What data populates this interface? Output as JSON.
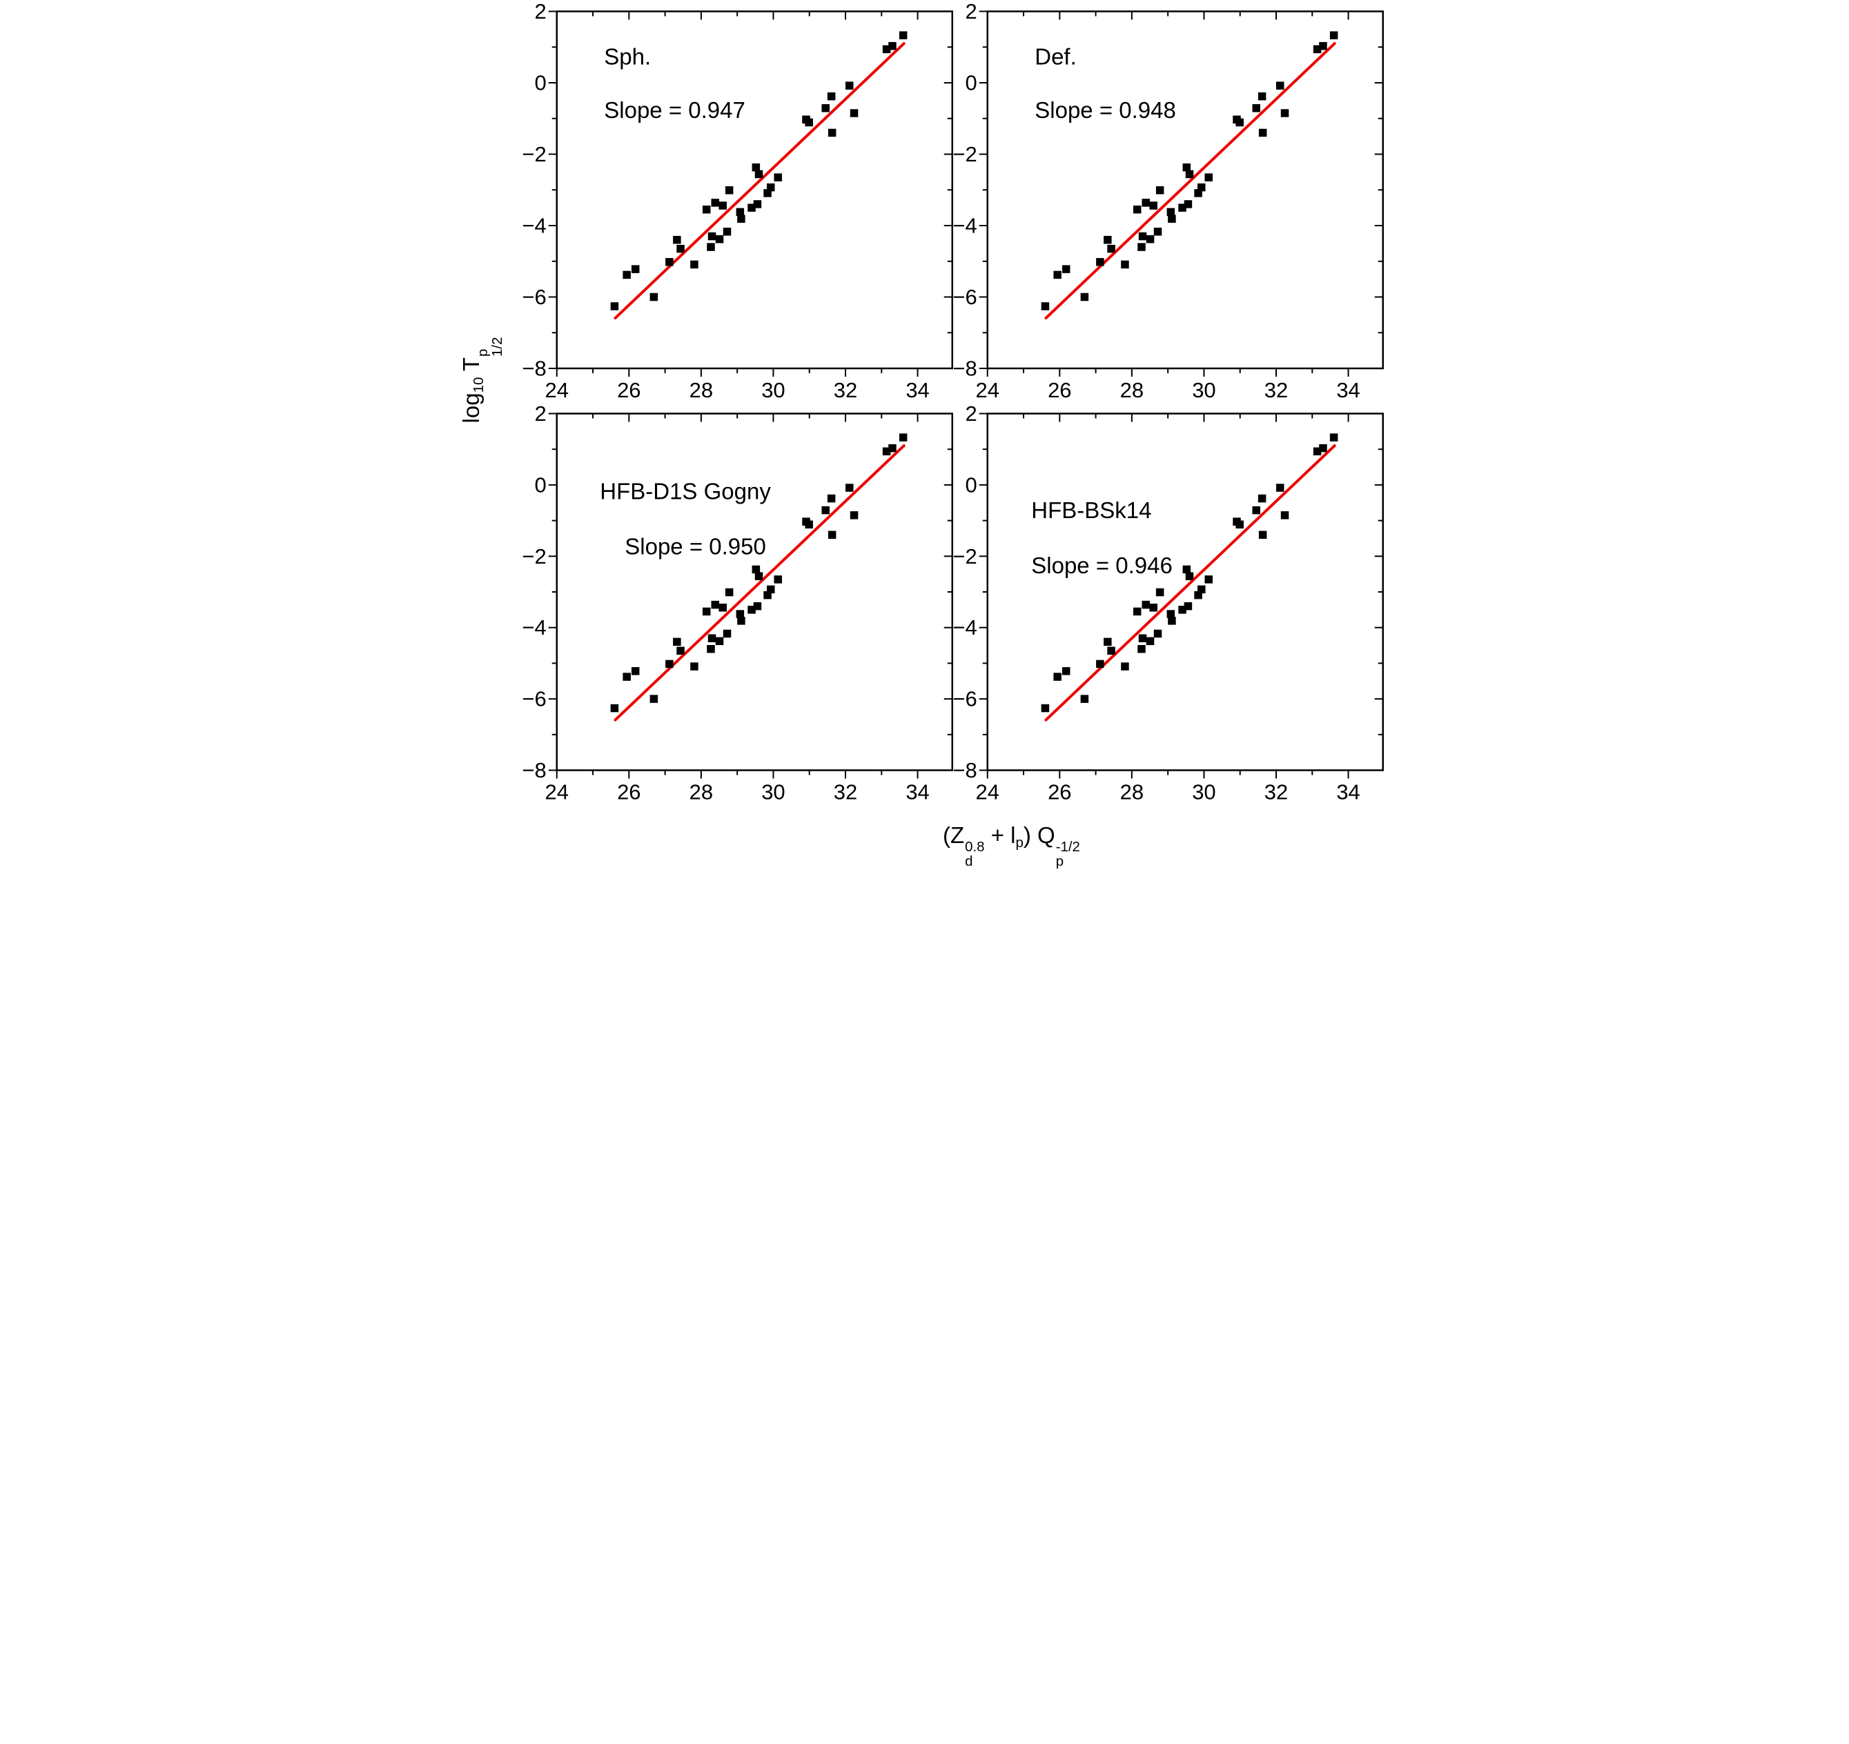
{
  "figure": {
    "background_color": "#ffffff",
    "marker_color": "#000000",
    "line_color": "#ee0000",
    "axis_color": "#000000"
  },
  "axes": {
    "x": {
      "min": 24,
      "max": 34.96,
      "major_ticks": [
        24,
        26,
        28,
        30,
        32,
        34
      ],
      "minor_ticks": [
        25,
        27,
        29,
        31,
        33
      ],
      "tick_labels": [
        "24",
        "26",
        "28",
        "30",
        "32",
        "34"
      ]
    },
    "y": {
      "min": -8,
      "max": 2,
      "major_ticks": [
        2,
        0,
        -2,
        -4,
        -6,
        -8
      ],
      "minor_ticks": [
        1,
        -1,
        -3,
        -5,
        -7
      ],
      "tick_labels": [
        "2",
        "0",
        "−2",
        "−4",
        "−6",
        "−8"
      ]
    }
  },
  "axis_titles": {
    "y": {
      "prefix": "log",
      "prefix_sub": "10",
      "symbol": " T",
      "sup": "p",
      "sub": "1/2"
    },
    "x": {
      "part1": "(Z",
      "z_sup": "0.8",
      "z_sub": "d",
      "part2": " + l",
      "l_sub": "p",
      "part3": ") Q",
      "q_sup": "-1/2",
      "q_sub": "p"
    }
  },
  "chart_data": {
    "type": "scatter",
    "layout": "2x2 panels, identical axes",
    "xlabel": "(Z_d^0.8 + l_p) Q_p^-1/2",
    "ylabel": "log10 T^p_1/2",
    "xlim": [
      24,
      34.96
    ],
    "ylim": [
      -8,
      2
    ],
    "grid": false,
    "legend": false,
    "marker": "filled-square",
    "panels": [
      {
        "id": "sph",
        "label": "Sph.",
        "slope_text": "Slope = 0.947",
        "slope": 0.947
      },
      {
        "id": "def",
        "label": "Def.",
        "slope_text": "Slope = 0.948",
        "slope": 0.948
      },
      {
        "id": "hfb-d1s-gogny",
        "label": "HFB-D1S Gogny",
        "slope_text": "Slope = 0.950",
        "slope": 0.95
      },
      {
        "id": "hfb-bsk14",
        "label": "HFB-BSk14",
        "slope_text": "Slope = 0.946",
        "slope": 0.946
      }
    ],
    "points_shared_by_all_panels": true,
    "points": [
      [
        25.6,
        -6.26
      ],
      [
        25.94,
        -5.38
      ],
      [
        26.18,
        -5.22
      ],
      [
        26.69,
        -6.0
      ],
      [
        27.12,
        -5.02
      ],
      [
        27.33,
        -4.4
      ],
      [
        27.43,
        -4.65
      ],
      [
        27.81,
        -5.09
      ],
      [
        28.15,
        -3.55
      ],
      [
        28.27,
        -4.6
      ],
      [
        28.3,
        -4.3
      ],
      [
        28.39,
        -3.36
      ],
      [
        28.51,
        -4.38
      ],
      [
        28.6,
        -3.44
      ],
      [
        28.72,
        -4.17
      ],
      [
        28.78,
        -3.01
      ],
      [
        29.08,
        -3.62
      ],
      [
        29.11,
        -3.81
      ],
      [
        29.4,
        -3.5
      ],
      [
        29.52,
        -2.37
      ],
      [
        29.56,
        -3.4
      ],
      [
        29.6,
        -2.56
      ],
      [
        29.84,
        -3.09
      ],
      [
        29.93,
        -2.93
      ],
      [
        30.13,
        -2.65
      ],
      [
        30.91,
        -1.03
      ],
      [
        30.99,
        -1.11
      ],
      [
        31.45,
        -0.71
      ],
      [
        31.61,
        -0.38
      ],
      [
        31.63,
        -1.4
      ],
      [
        32.11,
        -0.08
      ],
      [
        32.24,
        -0.85
      ],
      [
        33.14,
        0.94
      ],
      [
        33.3,
        1.03
      ],
      [
        33.6,
        1.33
      ]
    ],
    "fit_line": {
      "x1": 25.62,
      "y1": -6.59,
      "x2": 33.62,
      "y2": 1.1
    }
  }
}
